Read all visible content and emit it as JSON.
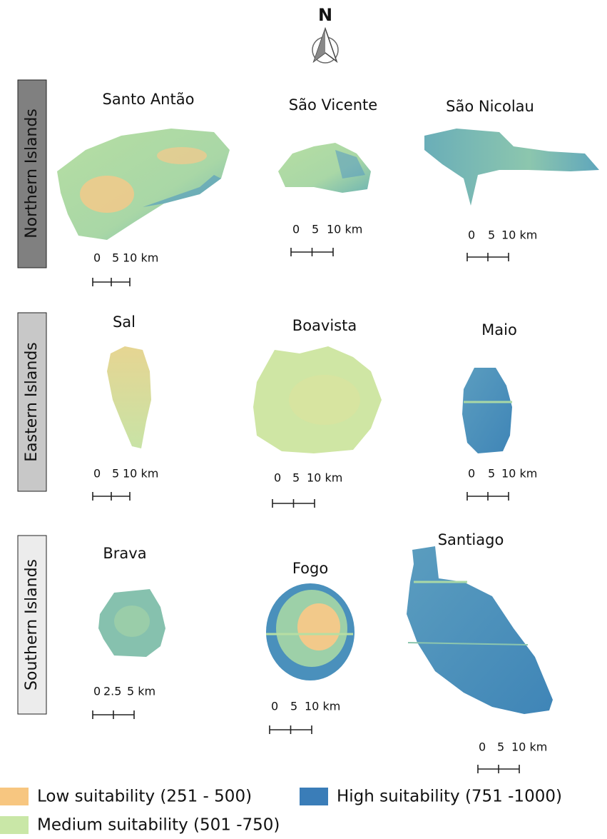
{
  "north_arrow": "N",
  "groups": [
    {
      "label": "Northern Islands",
      "islands": [
        {
          "name": "Santo Antão",
          "scale": [
            "0",
            "5",
            "10 km"
          ]
        },
        {
          "name": "São Vicente",
          "scale": [
            "0",
            "5",
            "10 km"
          ]
        },
        {
          "name": "São Nicolau",
          "scale": [
            "0",
            "5",
            "10 km"
          ]
        }
      ]
    },
    {
      "label": "Eastern Islands",
      "islands": [
        {
          "name": "Sal",
          "scale": [
            "0",
            "5",
            "10 km"
          ]
        },
        {
          "name": "Boavista",
          "scale": [
            "0",
            "5",
            "10 km"
          ]
        },
        {
          "name": "Maio",
          "scale": [
            "0",
            "5",
            "10 km"
          ]
        }
      ]
    },
    {
      "label": "Southern Islands",
      "islands": [
        {
          "name": "Brava",
          "scale": [
            "0",
            "2.5",
            "5 km"
          ]
        },
        {
          "name": "Fogo",
          "scale": [
            "0",
            "5",
            "10 km"
          ]
        },
        {
          "name": "Santiago",
          "scale": [
            "0",
            "5",
            "10 km"
          ]
        }
      ]
    }
  ],
  "legend": [
    {
      "label": "Low suitability (251 - 500)",
      "color": "#f7c680"
    },
    {
      "label": "High suitability (751 -1000)",
      "color": "#3a7db8"
    },
    {
      "label": "Medium suitability (501 -750)",
      "color": "#c9e7a7"
    }
  ]
}
